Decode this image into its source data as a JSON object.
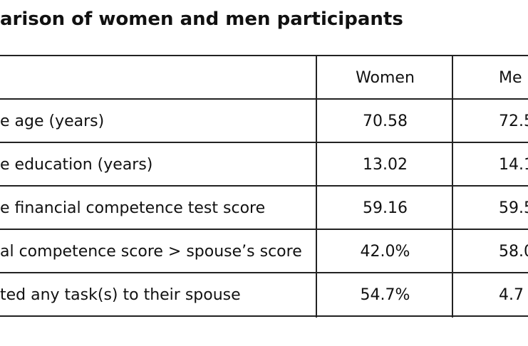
{
  "title": "arison of women and men participants",
  "table": {
    "columns": [
      "Women",
      "Me"
    ],
    "rows": [
      [
        "e age (years)",
        "70.58",
        "72.5"
      ],
      [
        "e education (years)",
        "13.02",
        "14.1"
      ],
      [
        "e financial competence test score",
        "59.16",
        "59.5"
      ],
      [
        "al competence score > spouse’s score",
        "42.0%",
        "58.0"
      ],
      [
        "ted any task(s) to their spouse",
        "54.7%",
        "4.7"
      ]
    ]
  }
}
